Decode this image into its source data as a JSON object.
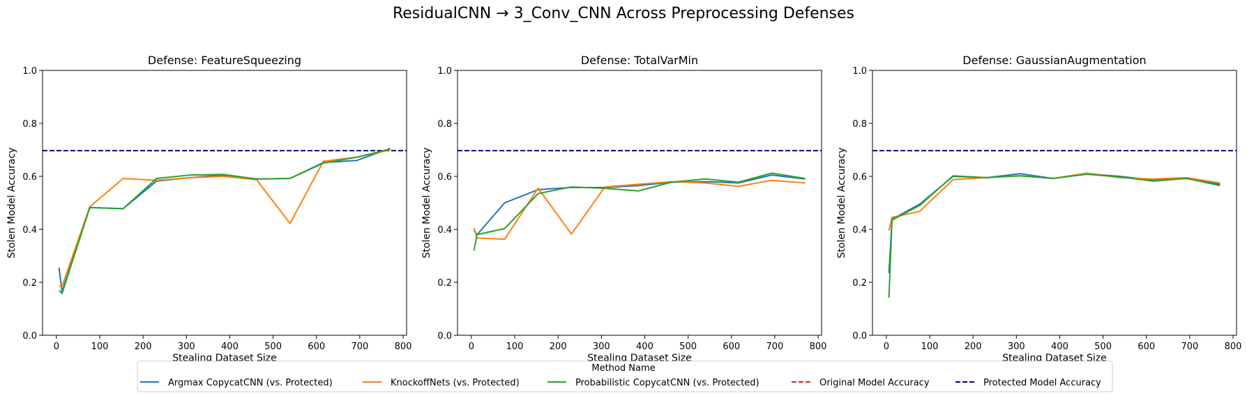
{
  "figure_title": "ResidualCNN → 3_Conv_CNN Across Preprocessing Defenses",
  "legend": {
    "title": "Method Name",
    "placement": "bottom-center",
    "entries": [
      {
        "label": "Argmax CopycatCNN (vs. Protected)",
        "color": "#1f77b4",
        "style": "solid"
      },
      {
        "label": "KnockoffNets (vs. Protected)",
        "color": "#ff7f0e",
        "style": "solid"
      },
      {
        "label": "Probabilistic CopycatCNN (vs. Protected)",
        "color": "#2ca02c",
        "style": "solid"
      },
      {
        "label": "Original Model Accuracy",
        "color": "#d62728",
        "style": "dashed"
      },
      {
        "label": "Protected Model Accuracy",
        "color": "#00008b",
        "style": "dashed"
      }
    ]
  },
  "chart_data": [
    {
      "type": "line",
      "title": "Defense: FeatureSqueezing",
      "xlabel": "Stealing Dataset Size",
      "ylabel": "Stolen Model Accuracy",
      "xlim": [
        -32,
        808
      ],
      "ylim": [
        0,
        1
      ],
      "xticks": [
        0,
        100,
        200,
        300,
        400,
        500,
        600,
        700,
        800
      ],
      "yticks": [
        0.0,
        0.2,
        0.4,
        0.6,
        0.8,
        1.0
      ],
      "x": [
        6,
        13,
        77,
        154,
        231,
        308,
        385,
        462,
        539,
        616,
        693,
        770
      ],
      "series": [
        {
          "name": "Argmax CopycatCNN (vs. Protected)",
          "color": "#1f77b4",
          "values": [
            0.255,
            0.165,
            0.482,
            0.478,
            0.582,
            0.595,
            0.605,
            0.59,
            0.592,
            0.652,
            0.66,
            0.705
          ]
        },
        {
          "name": "KnockoffNets (vs. Protected)",
          "color": "#ff7f0e",
          "values": [
            0.185,
            0.185,
            0.485,
            0.592,
            0.585,
            0.595,
            0.6,
            0.587,
            0.422,
            0.657,
            0.672,
            0.7
          ]
        },
        {
          "name": "Probabilistic CopycatCNN (vs. Protected)",
          "color": "#2ca02c",
          "values": [
            0.17,
            0.158,
            0.482,
            0.478,
            0.592,
            0.605,
            0.607,
            0.59,
            0.592,
            0.65,
            0.672,
            0.703
          ]
        }
      ],
      "hlines": [
        {
          "name": "Protected Model Accuracy",
          "value": 0.697,
          "color": "#00008b"
        }
      ]
    },
    {
      "type": "line",
      "title": "Defense: TotalVarMin",
      "xlabel": "Stealing Dataset Size",
      "ylabel": "Stolen Model Accuracy",
      "xlim": [
        -32,
        808
      ],
      "ylim": [
        0,
        1
      ],
      "xticks": [
        0,
        100,
        200,
        300,
        400,
        500,
        600,
        700,
        800
      ],
      "yticks": [
        0.0,
        0.2,
        0.4,
        0.6,
        0.8,
        1.0
      ],
      "x": [
        6,
        13,
        77,
        154,
        231,
        308,
        385,
        462,
        539,
        616,
        693,
        770
      ],
      "series": [
        {
          "name": "Argmax CopycatCNN (vs. Protected)",
          "color": "#1f77b4",
          "values": [
            0.395,
            0.38,
            0.5,
            0.55,
            0.558,
            0.558,
            0.565,
            0.578,
            0.58,
            0.575,
            0.605,
            0.59
          ]
        },
        {
          "name": "KnockoffNets (vs. Protected)",
          "color": "#ff7f0e",
          "values": [
            0.405,
            0.367,
            0.363,
            0.555,
            0.382,
            0.56,
            0.57,
            0.58,
            0.575,
            0.562,
            0.585,
            0.575
          ]
        },
        {
          "name": "Probabilistic CopycatCNN (vs. Protected)",
          "color": "#2ca02c",
          "values": [
            0.32,
            0.38,
            0.403,
            0.535,
            0.56,
            0.555,
            0.545,
            0.578,
            0.59,
            0.578,
            0.612,
            0.592
          ]
        }
      ],
      "hlines": [
        {
          "name": "Protected Model Accuracy",
          "value": 0.697,
          "color": "#00008b"
        }
      ]
    },
    {
      "type": "line",
      "title": "Defense: GaussianAugmentation",
      "xlabel": "Stealing Dataset Size",
      "ylabel": "Stolen Model Accuracy",
      "xlim": [
        -32,
        808
      ],
      "ylim": [
        0,
        1
      ],
      "xticks": [
        0,
        100,
        200,
        300,
        400,
        500,
        600,
        700,
        800
      ],
      "yticks": [
        0.0,
        0.2,
        0.4,
        0.6,
        0.8,
        1.0
      ],
      "x": [
        6,
        13,
        77,
        154,
        231,
        308,
        385,
        462,
        539,
        616,
        693,
        770
      ],
      "series": [
        {
          "name": "Argmax CopycatCNN (vs. Protected)",
          "color": "#1f77b4",
          "values": [
            0.235,
            0.438,
            0.495,
            0.6,
            0.595,
            0.61,
            0.592,
            0.61,
            0.6,
            0.585,
            0.592,
            0.57
          ]
        },
        {
          "name": "KnockoffNets (vs. Protected)",
          "color": "#ff7f0e",
          "values": [
            0.395,
            0.445,
            0.468,
            0.588,
            0.595,
            0.602,
            0.592,
            0.612,
            0.595,
            0.59,
            0.595,
            0.575
          ]
        },
        {
          "name": "Probabilistic CopycatCNN (vs. Protected)",
          "color": "#2ca02c",
          "values": [
            0.142,
            0.435,
            0.49,
            0.602,
            0.595,
            0.602,
            0.592,
            0.608,
            0.598,
            0.582,
            0.592,
            0.565
          ]
        }
      ],
      "hlines": [
        {
          "name": "Protected Model Accuracy",
          "value": 0.697,
          "color": "#00008b"
        }
      ]
    }
  ]
}
